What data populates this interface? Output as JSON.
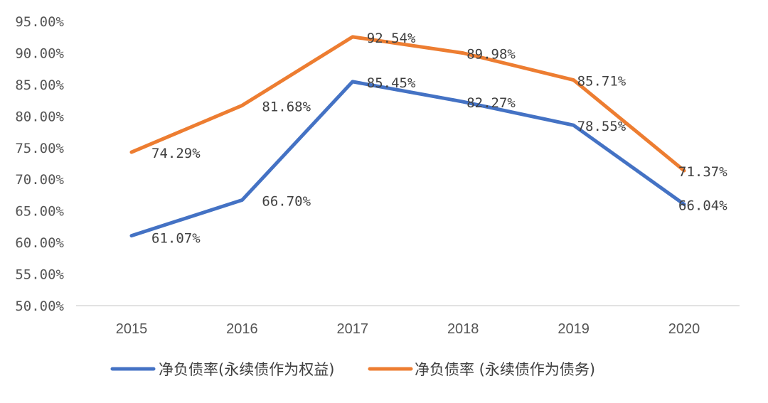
{
  "chart_data": {
    "type": "line",
    "categories": [
      "2015",
      "2016",
      "2017",
      "2018",
      "2019",
      "2020"
    ],
    "series": [
      {
        "name": "净负债率(永续债作为权益)",
        "color": "#4472C4",
        "values": [
          61.07,
          66.7,
          85.45,
          82.27,
          78.55,
          66.04
        ],
        "labels": [
          "61.07%",
          "66.70%",
          "85.45%",
          "82.27%",
          "78.55%",
          "66.04%"
        ]
      },
      {
        "name": "净负债率 (永续债作为债务)",
        "color": "#ED7D31",
        "values": [
          74.29,
          81.68,
          92.54,
          89.98,
          85.71,
          71.37
        ],
        "labels": [
          "74.29%",
          "81.68%",
          "92.54%",
          "89.98%",
          "85.71%",
          "71.37%"
        ]
      }
    ],
    "y_ticks": [
      "50.00%",
      "55.00%",
      "60.00%",
      "65.00%",
      "70.00%",
      "75.00%",
      "80.00%",
      "85.00%",
      "90.00%",
      "95.00%"
    ],
    "ylim": [
      50,
      95
    ],
    "grid": false,
    "legend_position": "bottom"
  }
}
